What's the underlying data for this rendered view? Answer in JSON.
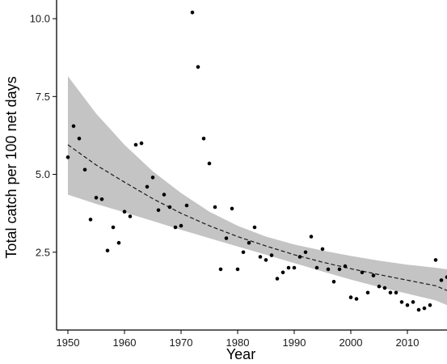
{
  "chart_data": {
    "type": "scatter",
    "xlabel": "Year",
    "ylabel": "Total catch per 100 net days",
    "xlim": [
      1948,
      2017
    ],
    "ylim": [
      0,
      10.6
    ],
    "x_ticks": [
      1950,
      1960,
      1970,
      1980,
      1990,
      2000,
      2010
    ],
    "y_ticks": [
      2.5,
      5.0,
      7.5,
      10.0
    ],
    "x_tick_labels": [
      "1950",
      "1960",
      "1970",
      "1980",
      "1990",
      "2000",
      "2010"
    ],
    "y_tick_labels": [
      "2.5",
      "5.0",
      "7.5",
      "10.0"
    ],
    "grid": false,
    "legend": "none",
    "colors": {
      "points": "#000000",
      "trend_line": "#1a1a1a",
      "confidence_band": "#c4c4c4",
      "axis": "#000000"
    },
    "series": [
      {
        "type": "scatter",
        "x": [
          1950,
          1951,
          1952,
          1953,
          1954,
          1955,
          1956,
          1957,
          1958,
          1959,
          1960,
          1961,
          1962,
          1963,
          1964,
          1965,
          1966,
          1967,
          1968,
          1969,
          1970,
          1971,
          1972,
          1973,
          1974,
          1975,
          1976,
          1977,
          1978,
          1979,
          1980,
          1981,
          1982,
          1983,
          1984,
          1985,
          1986,
          1987,
          1988,
          1989,
          1990,
          1991,
          1992,
          1993,
          1994,
          1995,
          1996,
          1997,
          1998,
          1999,
          2000,
          2001,
          2002,
          2003,
          2004,
          2005,
          2006,
          2007,
          2008,
          2009,
          2010,
          2011,
          2012,
          2013,
          2014,
          2015,
          2016,
          2017
        ],
        "y": [
          5.55,
          6.55,
          6.15,
          5.15,
          3.55,
          4.25,
          4.2,
          2.55,
          3.3,
          2.8,
          3.8,
          3.65,
          5.95,
          6.0,
          4.6,
          4.9,
          3.85,
          4.35,
          3.95,
          3.3,
          3.35,
          4.0,
          10.2,
          8.45,
          6.15,
          5.35,
          3.95,
          1.95,
          2.95,
          3.9,
          1.95,
          2.5,
          2.8,
          3.3,
          2.35,
          2.25,
          2.4,
          1.65,
          1.85,
          2.0,
          2.0,
          2.35,
          2.5,
          3.0,
          2.0,
          2.6,
          1.95,
          1.55,
          1.95,
          2.05,
          1.05,
          1.0,
          1.85,
          1.2,
          1.75,
          1.4,
          1.35,
          1.2,
          1.2,
          0.9,
          0.8,
          0.9,
          0.65,
          0.7,
          0.8,
          2.25,
          1.6,
          1.7
        ]
      },
      {
        "type": "line",
        "style": "dashed",
        "x": [
          1950,
          1955,
          1960,
          1965,
          1970,
          1975,
          1980,
          1985,
          1990,
          1995,
          2000,
          2005,
          2010,
          2015,
          2017
        ],
        "y": [
          5.95,
          5.3,
          4.75,
          4.22,
          3.75,
          3.35,
          3.0,
          2.7,
          2.42,
          2.18,
          1.97,
          1.78,
          1.6,
          1.42,
          1.27
        ]
      },
      {
        "type": "area",
        "x": [
          1950,
          1955,
          1960,
          1965,
          1970,
          1975,
          1980,
          1985,
          1990,
          1995,
          2000,
          2005,
          2010,
          2015,
          2017
        ],
        "upper": [
          8.15,
          6.95,
          5.95,
          5.1,
          4.4,
          3.8,
          3.35,
          3.0,
          2.75,
          2.55,
          2.38,
          2.23,
          2.1,
          2.0,
          1.95
        ],
        "lower": [
          4.35,
          4.05,
          3.78,
          3.5,
          3.22,
          2.95,
          2.68,
          2.42,
          2.15,
          1.88,
          1.62,
          1.38,
          1.17,
          0.95,
          0.8
        ]
      }
    ]
  }
}
